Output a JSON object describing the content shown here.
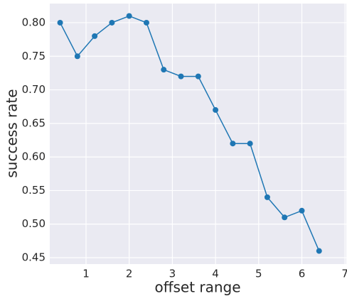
{
  "chart_data": {
    "type": "line",
    "x": [
      0.4,
      0.8,
      1.2,
      1.6,
      2.0,
      2.4,
      2.8,
      3.2,
      3.6,
      4.0,
      4.4,
      4.8,
      5.2,
      5.6,
      6.0,
      6.4
    ],
    "series": [
      {
        "color": "#1f77b4",
        "values": [
          0.8,
          0.75,
          0.78,
          0.8,
          0.81,
          0.8,
          0.73,
          0.72,
          0.72,
          0.67,
          0.62,
          0.62,
          0.54,
          0.51,
          0.52,
          0.46
        ]
      }
    ],
    "xlabel": "offset range",
    "ylabel": "success rate",
    "xlim": [
      0.16,
      7.03
    ],
    "xticks": [
      1,
      2,
      3,
      4,
      5,
      6,
      7
    ],
    "ylim": [
      0.4405,
      0.8285
    ],
    "yticks": [
      0.45,
      {
        "value": 0.5,
        "label": "0.50"
      },
      0.55,
      {
        "value": 0.6,
        "label": "0.60"
      },
      0.65,
      {
        "value": 0.7,
        "label": "0.70"
      },
      0.75,
      {
        "value": 0.8,
        "label": "0.80"
      }
    ],
    "grid": true
  }
}
